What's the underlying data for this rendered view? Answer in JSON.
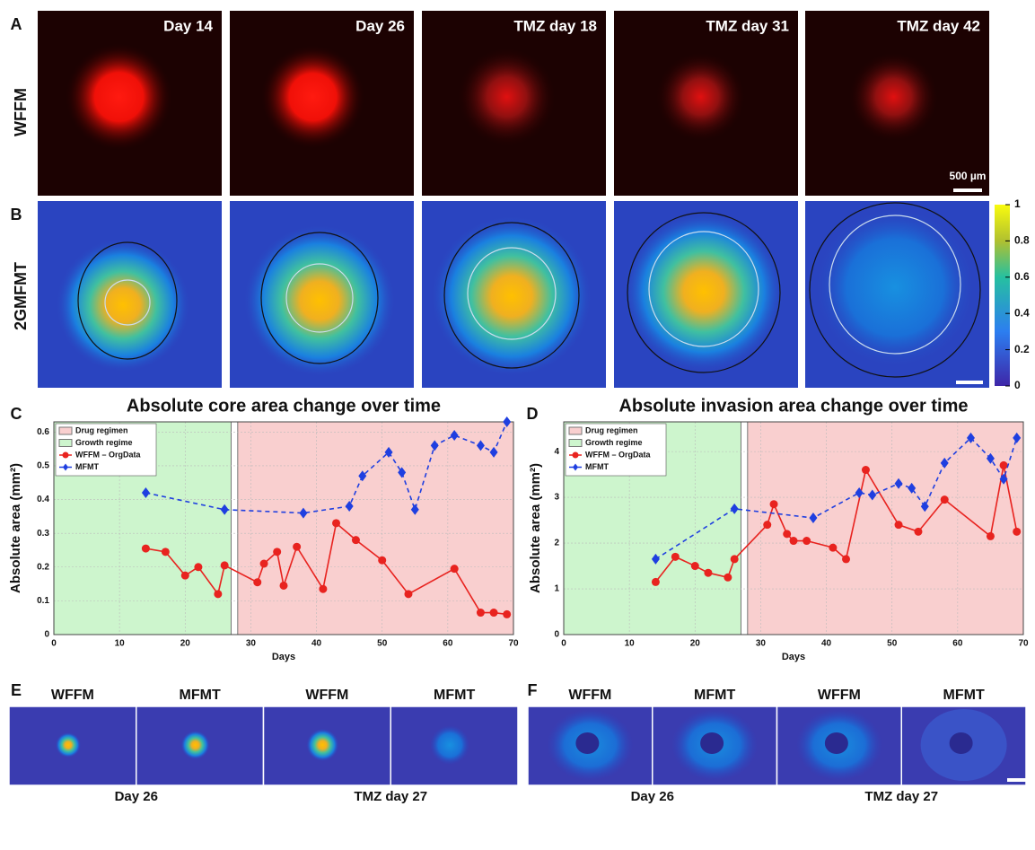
{
  "panels": {
    "labels": [
      "A",
      "B",
      "C",
      "D",
      "E",
      "F"
    ],
    "row_a": {
      "row_label": "WFFM",
      "titles": [
        "Day 14",
        "Day 26",
        "TMZ day 18",
        "TMZ day 31",
        "TMZ day 42"
      ],
      "scale_bar": "500 µm"
    },
    "row_b": {
      "row_label": "2GMFMT",
      "colorbar": {
        "lim": [
          0,
          1
        ],
        "ticks": [
          0,
          0.2,
          0.4,
          0.6,
          0.8,
          1
        ]
      }
    },
    "row_e": {
      "top": [
        "WFFM",
        "MFMT",
        "WFFM",
        "MFMT"
      ],
      "bottom": [
        "Day 26",
        "TMZ day 27"
      ]
    },
    "row_f": {
      "top": [
        "WFFM",
        "MFMT",
        "WFFM",
        "MFMT"
      ],
      "bottom": [
        "Day 26",
        "TMZ day 27"
      ]
    }
  },
  "chart_data": [
    {
      "type": "line",
      "title": "Absolute core area change over time",
      "x_label": "Days",
      "y_label": "Absolute area (mm²)",
      "xlim": [
        0,
        70
      ],
      "xticks": [
        0,
        10,
        20,
        30,
        40,
        50,
        60,
        70
      ],
      "ylim": [
        0,
        0.63
      ],
      "yticks": [
        0,
        0.1,
        0.2,
        0.3,
        0.4,
        0.5,
        0.6
      ],
      "grid": true,
      "legend": "upper left",
      "regions": [
        {
          "name": "Drug regimen",
          "color": "#f9cfcf",
          "x": [
            28,
            70
          ]
        },
        {
          "name": "Growth regime",
          "color": "#cdf5cd",
          "x": [
            0,
            27
          ]
        }
      ],
      "series": [
        {
          "name": "WFFM – OrgData",
          "color": "#e8231f",
          "marker": "circle",
          "linestyle": "solid",
          "x": [
            14,
            17,
            20,
            22,
            25,
            26,
            31,
            32,
            34,
            35,
            37,
            41,
            43,
            46,
            50,
            54,
            61,
            65,
            67,
            69
          ],
          "values": [
            0.255,
            0.245,
            0.175,
            0.2,
            0.12,
            0.205,
            0.155,
            0.21,
            0.245,
            0.145,
            0.26,
            0.135,
            0.33,
            0.28,
            0.22,
            0.12,
            0.195,
            0.065,
            0.065,
            0.06
          ]
        },
        {
          "name": "MFMT",
          "color": "#1f3fe0",
          "marker": "diamond",
          "linestyle": "dashed",
          "x": [
            14,
            26,
            38,
            45,
            47,
            51,
            53,
            55,
            58,
            61,
            65,
            67,
            69
          ],
          "values": [
            0.42,
            0.37,
            0.36,
            0.38,
            0.47,
            0.54,
            0.48,
            0.37,
            0.56,
            0.59,
            0.56,
            0.54,
            0.63
          ]
        }
      ]
    },
    {
      "type": "line",
      "title": "Absolute invasion area change over time",
      "x_label": "Days",
      "y_label": "Absolute area (mm²)",
      "xlim": [
        0,
        70
      ],
      "xticks": [
        0,
        10,
        20,
        30,
        40,
        50,
        60,
        70
      ],
      "ylim": [
        0,
        4.65
      ],
      "yticks": [
        0,
        1,
        2,
        3,
        4
      ],
      "grid": true,
      "legend": "upper left",
      "regions": [
        {
          "name": "Drug regimen",
          "color": "#f9cfcf",
          "x": [
            28,
            70
          ]
        },
        {
          "name": "Growth regime",
          "color": "#cdf5cd",
          "x": [
            0,
            27
          ]
        }
      ],
      "series": [
        {
          "name": "WFFM – OrgData",
          "color": "#e8231f",
          "marker": "circle",
          "linestyle": "solid",
          "x": [
            14,
            17,
            20,
            22,
            25,
            26,
            31,
            32,
            34,
            35,
            37,
            41,
            43,
            46,
            51,
            54,
            58,
            65,
            67,
            69
          ],
          "values": [
            1.15,
            1.7,
            1.5,
            1.35,
            1.25,
            1.65,
            2.4,
            2.85,
            2.2,
            2.05,
            2.05,
            1.9,
            1.65,
            3.6,
            2.4,
            2.25,
            2.95,
            2.15,
            3.7,
            2.25
          ]
        },
        {
          "name": "MFMT",
          "color": "#1f3fe0",
          "marker": "diamond",
          "linestyle": "dashed",
          "x": [
            14,
            26,
            38,
            45,
            47,
            51,
            53,
            55,
            58,
            62,
            65,
            67,
            69
          ],
          "values": [
            1.65,
            2.75,
            2.55,
            3.1,
            3.05,
            3.3,
            3.2,
            2.8,
            3.75,
            4.3,
            3.85,
            3.4,
            4.3
          ]
        }
      ]
    }
  ]
}
